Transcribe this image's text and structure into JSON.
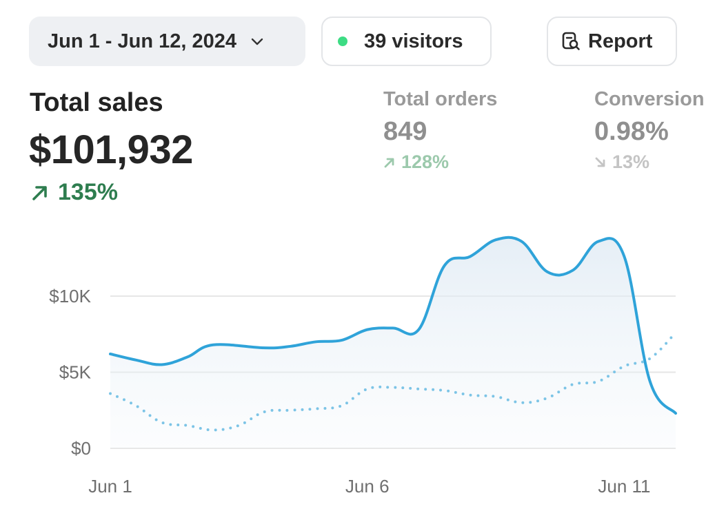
{
  "header": {
    "date_range": "Jun 1 - Jun 12, 2024",
    "visitors": "39 visitors",
    "report_label": "Report",
    "live_dot_color": "#3ddc84"
  },
  "metrics": {
    "total_sales": {
      "label": "Total sales",
      "value": "$101,932",
      "change": "135%",
      "direction": "up"
    },
    "total_orders": {
      "label": "Total orders",
      "value": "849",
      "change": "128%",
      "direction": "up"
    },
    "conversion": {
      "label": "Conversion",
      "value": "0.98%",
      "change": "13%",
      "direction": "down"
    }
  },
  "chart_data": {
    "type": "line",
    "y_ticks": [
      "$0",
      "$5K",
      "$10K"
    ],
    "x_ticks": [
      "Jun 1",
      "Jun 6",
      "Jun 11"
    ],
    "ylim": [
      0,
      15000
    ],
    "grid": true,
    "series": [
      {
        "style": "solid",
        "color": "#2fa3d9",
        "x": [
          1,
          1.5,
          2,
          2.5,
          3,
          4,
          4.5,
          5,
          5.5,
          6,
          6.5,
          7,
          7.5,
          8,
          8.5,
          9,
          9.5,
          10,
          10.5,
          11,
          11.5,
          12
        ],
        "values": [
          6200,
          5800,
          5500,
          6000,
          6800,
          6600,
          6700,
          7000,
          7100,
          7800,
          7900,
          7800,
          12000,
          12600,
          13700,
          13600,
          11600,
          11700,
          13600,
          12600,
          4400,
          2300
        ]
      },
      {
        "style": "dotted",
        "color": "#7cc4e6",
        "x": [
          1,
          1.5,
          2,
          2.5,
          3,
          3.5,
          4,
          4.5,
          5,
          5.5,
          6,
          6.5,
          7,
          7.5,
          8,
          8.5,
          9,
          9.5,
          10,
          10.5,
          11,
          11.5,
          12
        ],
        "values": [
          3600,
          2800,
          1700,
          1500,
          1200,
          1500,
          2400,
          2500,
          2600,
          2800,
          3900,
          4000,
          3900,
          3800,
          3500,
          3400,
          3000,
          3300,
          4200,
          4400,
          5400,
          5900,
          7600
        ]
      }
    ]
  }
}
